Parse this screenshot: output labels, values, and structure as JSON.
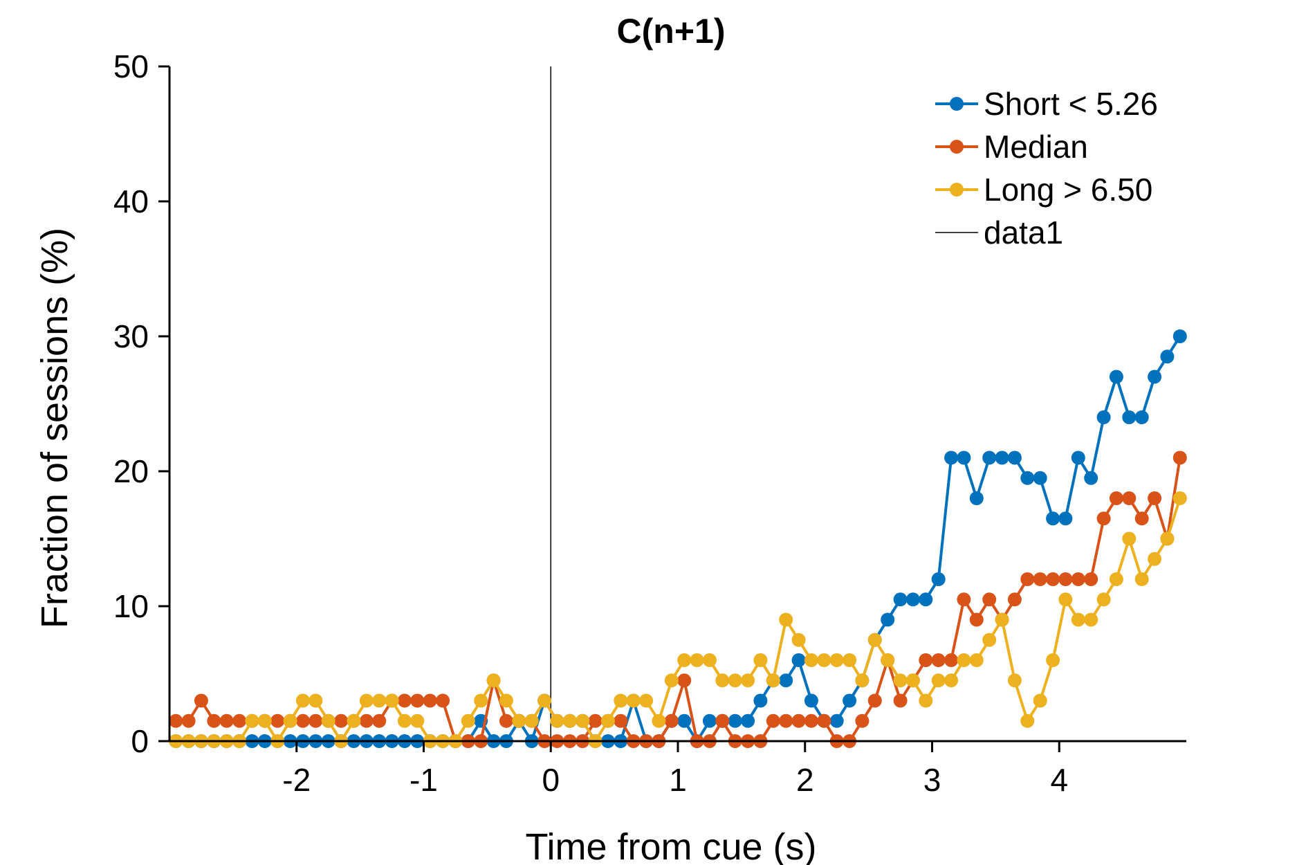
{
  "chart_data": {
    "type": "line",
    "title": "C(n+1)",
    "xlabel": "Time from cue (s)",
    "ylabel": "Fraction of sessions (%)",
    "xlim": [
      -3.0,
      5.0
    ],
    "ylim": [
      0,
      50
    ],
    "xticks": [
      -2,
      -1,
      0,
      1,
      2,
      3,
      4
    ],
    "xtick_labels": [
      "-2",
      "-1",
      "0",
      "1",
      "2",
      "3",
      "4"
    ],
    "yticks": [
      0,
      10,
      20,
      30,
      40,
      50
    ],
    "ytick_labels": [
      "0",
      "10",
      "20",
      "30",
      "40",
      "50"
    ],
    "x": [
      -2.95,
      -2.85,
      -2.75,
      -2.65,
      -2.55,
      -2.45,
      -2.35,
      -2.25,
      -2.15,
      -2.05,
      -1.95,
      -1.85,
      -1.75,
      -1.65,
      -1.55,
      -1.45,
      -1.35,
      -1.25,
      -1.15,
      -1.05,
      -0.95,
      -0.85,
      -0.75,
      -0.65,
      -0.55,
      -0.45,
      -0.35,
      -0.25,
      -0.15,
      -0.05,
      0.05,
      0.15,
      0.25,
      0.35,
      0.45,
      0.55,
      0.65,
      0.75,
      0.85,
      0.95,
      1.05,
      1.15,
      1.25,
      1.35,
      1.45,
      1.55,
      1.65,
      1.75,
      1.85,
      1.95,
      2.05,
      2.15,
      2.25,
      2.35,
      2.45,
      2.55,
      2.65,
      2.75,
      2.85,
      2.95,
      3.05,
      3.15,
      3.25,
      3.35,
      3.45,
      3.55,
      3.65,
      3.75,
      3.85,
      3.95,
      4.05,
      4.15,
      4.25,
      4.35,
      4.45,
      4.55,
      4.65,
      4.75,
      4.85,
      4.95
    ],
    "series": [
      {
        "name": "Short < 5.26",
        "color": "#0072BD",
        "values": [
          0,
          0,
          0,
          0,
          0,
          0,
          0,
          0,
          0,
          0,
          0,
          0,
          0,
          0,
          0,
          0,
          0,
          0,
          0,
          0,
          0,
          0,
          0,
          0,
          1.5,
          0,
          0,
          1.5,
          0,
          3,
          1.5,
          1.5,
          1.5,
          0,
          0,
          0,
          3,
          0,
          0,
          1.5,
          1.5,
          0,
          1.5,
          1.5,
          1.5,
          1.5,
          3,
          4.5,
          4.5,
          6,
          3,
          1.5,
          1.5,
          3,
          4.5,
          7.5,
          9,
          10.5,
          10.5,
          10.5,
          12,
          21,
          21,
          18,
          21,
          21,
          21,
          19.5,
          19.5,
          16.5,
          16.5,
          21,
          19.5,
          24,
          27,
          24,
          24,
          27,
          28.5,
          30
        ]
      },
      {
        "name": "Median",
        "color": "#D95319",
        "values": [
          1.5,
          1.5,
          3,
          1.5,
          1.5,
          1.5,
          1.5,
          1.5,
          1.5,
          1.5,
          1.5,
          1.5,
          1.5,
          1.5,
          1.5,
          1.5,
          1.5,
          3,
          3,
          3,
          3,
          3,
          0,
          0,
          0,
          4.5,
          1.5,
          1.5,
          1.5,
          0,
          0,
          0,
          0,
          1.5,
          1.5,
          1.5,
          0,
          0,
          0,
          1.5,
          4.5,
          0,
          0,
          1.5,
          0,
          0,
          0,
          1.5,
          1.5,
          1.5,
          1.5,
          1.5,
          0,
          0,
          1.5,
          3,
          6,
          3,
          4.5,
          6,
          6,
          6,
          10.5,
          9,
          10.5,
          9,
          10.5,
          12,
          12,
          12,
          12,
          12,
          12,
          16.5,
          18,
          18,
          16.5,
          18,
          15,
          21
        ]
      },
      {
        "name": "Long > 6.50",
        "color": "#EDB120",
        "values": [
          0,
          0,
          0,
          0,
          0,
          0,
          1.5,
          1.5,
          0,
          1.5,
          3,
          3,
          1.5,
          0,
          1.5,
          3,
          3,
          3,
          1.5,
          1.5,
          0,
          0,
          0,
          1.5,
          3,
          4.5,
          3,
          1.5,
          1.5,
          3,
          1.5,
          1.5,
          1.5,
          0,
          1.5,
          3,
          3,
          3,
          1.5,
          4.5,
          6,
          6,
          6,
          4.5,
          4.5,
          4.5,
          6,
          4.5,
          9,
          7.5,
          6,
          6,
          6,
          6,
          4.5,
          7.5,
          6,
          4.5,
          4.5,
          3,
          4.5,
          4.5,
          6,
          6,
          7.5,
          9,
          4.5,
          1.5,
          3,
          6,
          10.5,
          9,
          9,
          10.5,
          12,
          15,
          12,
          13.5,
          15,
          18
        ]
      },
      {
        "name": "data1",
        "color": "#000000",
        "type": "vline",
        "x": 0
      }
    ],
    "legend": {
      "position": "top-right",
      "entries": [
        "Short < 5.26",
        "Median",
        "Long > 6.50",
        "data1"
      ]
    },
    "grid": false
  }
}
